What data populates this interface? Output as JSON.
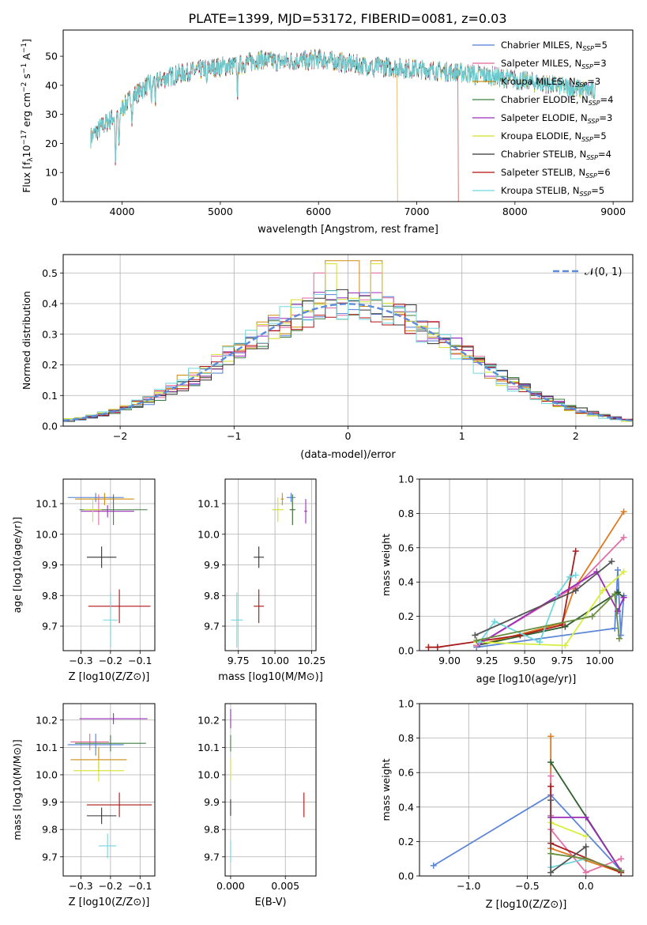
{
  "figure": {
    "suptitle": "PLATE=1399, MJD=53172, FIBERID=0081, z=0.03"
  },
  "colors": {
    "Chabrier MILES": "#4f7ed8",
    "Salpeter MILES": "#e3669b",
    "Kroupa MILES": "#d08b10",
    "Chabrier ELODIE": "#3f7f3f",
    "Salpeter ELODIE": "#9b2db8",
    "Kroupa ELODIE": "#d4e02a",
    "Chabrier STELIB": "#333333",
    "Salpeter STELIB": "#b01010",
    "Kroupa STELIB": "#6fd7dd",
    "mass_weight_palette": [
      "#5b86d6",
      "#e0781c",
      "#2f5f2f",
      "#e36fa8",
      "#a71d1d",
      "#9b2db8",
      "#d8ef3a",
      "#6fd7dd",
      "#555555",
      "#6a8f3f"
    ],
    "normal_curve": "#5b8bd9"
  },
  "chart_data": [
    {
      "type": "line",
      "id": "spectrum",
      "xlabel": "wavelength [Angstrom, rest frame]",
      "ylabel": "Flux [f_λ 10^-17 erg cm^-2 s^-1 A^-1]",
      "xlim": [
        3400,
        9200
      ],
      "ylim": [
        0,
        59
      ],
      "xticks": [
        4000,
        5000,
        6000,
        7000,
        8000,
        9000
      ],
      "yticks": [
        0,
        10,
        20,
        30,
        40,
        50
      ],
      "grid": false,
      "legend": "top-right",
      "continuum": {
        "x": [
          3680,
          3800,
          3950,
          4000,
          4100,
          4300,
          4600,
          4900,
          5200,
          5400,
          5600,
          6000,
          6400,
          6800,
          7200,
          7600,
          8000,
          8400,
          8800
        ],
        "y": [
          22,
          26,
          30,
          32,
          36,
          41,
          44,
          46,
          47,
          49,
          48,
          49,
          47,
          46,
          45,
          44,
          42,
          40,
          38
        ]
      },
      "series": [
        {
          "name": "Chabrier MILES, N_SSP=5",
          "label_main": "Chabrier MILES, N",
          "label_sub": "SSP",
          "label_tail": "=5"
        },
        {
          "name": "Salpeter MILES, N_SSP=3",
          "label_main": "Salpeter MILES, N",
          "label_sub": "SSP",
          "label_tail": "=3"
        },
        {
          "name": "Kroupa MILES, N_SSP=3",
          "label_main": "Kroupa MILES, N",
          "label_sub": "SSP",
          "label_tail": "=3",
          "cutoff_x": 6800
        },
        {
          "name": "Chabrier ELODIE, N_SSP=4",
          "label_main": "Chabrier ELODIE, N",
          "label_sub": "SSP",
          "label_tail": "=4"
        },
        {
          "name": "Salpeter ELODIE, N_SSP=3",
          "label_main": "Salpeter ELODIE, N",
          "label_sub": "SSP",
          "label_tail": "=3"
        },
        {
          "name": "Kroupa ELODIE, N_SSP=5",
          "label_main": "Kroupa ELODIE, N",
          "label_sub": "SSP",
          "label_tail": "=5"
        },
        {
          "name": "Chabrier STELIB, N_SSP=4",
          "label_main": "Chabrier STELIB, N",
          "label_sub": "SSP",
          "label_tail": "=4"
        },
        {
          "name": "Salpeter STELIB, N_SSP=6",
          "label_main": "Salpeter STELIB, N",
          "label_sub": "SSP",
          "label_tail": "=6",
          "cutoff_x": 7420
        },
        {
          "name": "Kroupa STELIB, N_SSP=5",
          "label_main": "Kroupa STELIB, N",
          "label_sub": "SSP",
          "label_tail": "=5"
        }
      ]
    },
    {
      "type": "line",
      "id": "residual-histogram",
      "xlabel": "(data-model)/error",
      "ylabel": "Normed distribution",
      "xlim": [
        -2.5,
        2.5
      ],
      "ylim": [
        0,
        0.56
      ],
      "xticks": [
        -2,
        -1,
        0,
        1,
        2
      ],
      "yticks": [
        0.0,
        0.1,
        0.2,
        0.3,
        0.4,
        0.5
      ],
      "grid": true,
      "legend": "top-right",
      "legend_label": "𝒩(0, 1)",
      "bin_width": 0.1,
      "peak_values": {
        "Kroupa MILES": 0.54,
        "Kroupa ELODIE": 0.53,
        "Salpeter MILES": 0.5
      }
    },
    {
      "type": "scatter",
      "id": "age-vs-Z",
      "xlabel": "Z [log10(Z/Z⊙)]",
      "ylabel": "age [log10(age/yr)]",
      "xlim": [
        -0.36,
        -0.05
      ],
      "ylim": [
        9.62,
        10.18
      ],
      "xticks": [
        -0.3,
        -0.2,
        -0.1
      ],
      "yticks": [
        9.7,
        9.8,
        9.9,
        10.0,
        10.1
      ],
      "grid": true,
      "points": [
        {
          "series": "Chabrier MILES",
          "x": -0.25,
          "y": 10.12,
          "xerr": 0.095,
          "yerr": 0.015
        },
        {
          "series": "Salpeter MILES",
          "x": -0.24,
          "y": 10.08,
          "xerr": 0.03,
          "yerr": 0.05
        },
        {
          "series": "Kroupa MILES",
          "x": -0.22,
          "y": 10.115,
          "xerr": 0.1,
          "yerr": 0.02
        },
        {
          "series": "Chabrier ELODIE",
          "x": -0.19,
          "y": 10.08,
          "xerr": 0.115,
          "yerr": 0.05
        },
        {
          "series": "Salpeter ELODIE",
          "x": -0.21,
          "y": 10.075,
          "xerr": 0.09,
          "yerr": 0.02
        },
        {
          "series": "Kroupa ELODIE",
          "x": -0.26,
          "y": 10.08,
          "xerr": 0.03,
          "yerr": 0.04
        },
        {
          "series": "Chabrier STELIB",
          "x": -0.23,
          "y": 9.925,
          "xerr": 0.05,
          "yerr": 0.035
        },
        {
          "series": "Salpeter STELIB",
          "x": -0.17,
          "y": 9.765,
          "xerr": 0.105,
          "yerr": 0.055
        },
        {
          "series": "Kroupa STELIB",
          "x": -0.2,
          "y": 9.72,
          "xerr": 0.025,
          "yerr": 0.09
        }
      ]
    },
    {
      "type": "scatter",
      "id": "age-vs-mass",
      "xlabel": "mass [log10(M/M⊙)]",
      "ylabel": "",
      "xlim": [
        9.66,
        10.28
      ],
      "ylim": [
        9.62,
        10.18
      ],
      "xticks": [
        9.75,
        10.0,
        10.25
      ],
      "yticks": [
        9.7,
        9.8,
        9.9,
        10.0,
        10.1
      ],
      "grid": true,
      "points": [
        {
          "series": "Chabrier MILES",
          "x": 10.11,
          "y": 10.12,
          "xerr": 0.03,
          "yerr": 0.015
        },
        {
          "series": "Salpeter MILES",
          "x": 10.12,
          "y": 10.08,
          "xerr": 0.01,
          "yerr": 0.05
        },
        {
          "series": "Kroupa MILES",
          "x": 10.05,
          "y": 10.115,
          "xerr": 0.01,
          "yerr": 0.02
        },
        {
          "series": "Chabrier ELODIE",
          "x": 10.12,
          "y": 10.08,
          "xerr": 0.02,
          "yerr": 0.05
        },
        {
          "series": "Salpeter ELODIE",
          "x": 10.21,
          "y": 10.075,
          "xerr": 0.01,
          "yerr": 0.04
        },
        {
          "series": "Kroupa ELODIE",
          "x": 10.02,
          "y": 10.08,
          "xerr": 0.04,
          "yerr": 0.04
        },
        {
          "series": "Chabrier STELIB",
          "x": 9.89,
          "y": 9.925,
          "xerr": 0.035,
          "yerr": 0.035
        },
        {
          "series": "Salpeter STELIB",
          "x": 9.89,
          "y": 9.765,
          "xerr": 0.035,
          "yerr": 0.055
        },
        {
          "series": "Kroupa STELIB",
          "x": 9.74,
          "y": 9.72,
          "xerr": 0.04,
          "yerr": 0.09
        }
      ]
    },
    {
      "type": "line",
      "id": "mass-weight-vs-age",
      "xlabel": "age [log10(age/yr)]",
      "ylabel": "mass weight",
      "xlim": [
        8.8,
        10.22
      ],
      "ylim": [
        0,
        1
      ],
      "xticks": [
        9.0,
        9.25,
        9.5,
        9.75,
        10.0
      ],
      "yticks": [
        0.0,
        0.2,
        0.4,
        0.6,
        0.8,
        1.0
      ],
      "grid": true,
      "series": [
        {
          "name": "Chabrier MILES",
          "x": [
            9.18,
            10.1,
            10.12,
            10.14,
            10.16
          ],
          "y": [
            0.02,
            0.13,
            0.47,
            0.09,
            0.32
          ]
        },
        {
          "name": "Kroupa MILES",
          "x": [
            9.18,
            9.75,
            9.83,
            10.16
          ],
          "y": [
            0.03,
            0.16,
            0.36,
            0.81
          ]
        },
        {
          "name": "Chabrier ELODIE",
          "x": [
            9.18,
            9.77,
            10.12,
            10.16
          ],
          "y": [
            0.03,
            0.14,
            0.34,
            0.31
          ]
        },
        {
          "name": "Salpeter MILES",
          "x": [
            9.18,
            9.85,
            10.16
          ],
          "y": [
            0.03,
            0.38,
            0.66
          ]
        },
        {
          "name": "Salpeter STELIB",
          "x": [
            8.86,
            8.92,
            9.47,
            9.75,
            9.84
          ],
          "y": [
            0.02,
            0.02,
            0.09,
            0.15,
            0.58
          ]
        },
        {
          "name": "Salpeter ELODIE",
          "x": [
            9.2,
            9.98,
            10.12,
            10.16
          ],
          "y": [
            0.04,
            0.46,
            0.23,
            0.31
          ]
        },
        {
          "name": "Kroupa ELODIE",
          "x": [
            9.18,
            9.77,
            10.02,
            10.16
          ],
          "y": [
            0.05,
            0.03,
            0.35,
            0.46
          ]
        },
        {
          "name": "Kroupa STELIB",
          "x": [
            9.2,
            9.3,
            9.6,
            9.72,
            9.8,
            9.84
          ],
          "y": [
            0.05,
            0.17,
            0.05,
            0.33,
            0.43,
            0.44
          ]
        },
        {
          "name": "Chabrier STELIB",
          "x": [
            9.17,
            9.84,
            10.08
          ],
          "y": [
            0.09,
            0.35,
            0.52
          ]
        },
        {
          "name": "Chabrier STELIB 2",
          "x": [
            9.18,
            9.95,
            10.1,
            10.13
          ],
          "y": [
            0.06,
            0.2,
            0.33,
            0.07
          ]
        }
      ]
    },
    {
      "type": "scatter",
      "id": "mass-vs-Z",
      "xlabel": "Z [log10(Z/Z⊙)]",
      "ylabel": "mass [log10(M/M⊙)]",
      "xlim": [
        -0.36,
        -0.05
      ],
      "ylim": [
        9.63,
        10.26
      ],
      "xticks": [
        -0.3,
        -0.2,
        -0.1
      ],
      "yticks": [
        9.7,
        9.8,
        9.9,
        10.0,
        10.1,
        10.2
      ],
      "grid": true,
      "points": [
        {
          "series": "Salpeter ELODIE",
          "x": -0.19,
          "y": 10.205,
          "xerr": 0.115,
          "yerr": 0.02
        },
        {
          "series": "Salpeter MILES",
          "x": -0.27,
          "y": 10.12,
          "xerr": 0.065,
          "yerr": 0.03
        },
        {
          "series": "Chabrier ELODIE",
          "x": -0.2,
          "y": 10.115,
          "xerr": 0.12,
          "yerr": 0.03
        },
        {
          "series": "Chabrier MILES",
          "x": -0.25,
          "y": 10.11,
          "xerr": 0.095,
          "yerr": 0.04
        },
        {
          "series": "Kroupa MILES",
          "x": -0.24,
          "y": 10.055,
          "xerr": 0.095,
          "yerr": 0.045
        },
        {
          "series": "Kroupa ELODIE",
          "x": -0.24,
          "y": 10.015,
          "xerr": 0.085,
          "yerr": 0.04
        },
        {
          "series": "Salpeter STELIB",
          "x": -0.17,
          "y": 9.89,
          "xerr": 0.11,
          "yerr": 0.045
        },
        {
          "series": "Chabrier STELIB",
          "x": -0.23,
          "y": 9.85,
          "xerr": 0.05,
          "yerr": 0.03
        },
        {
          "series": "Kroupa STELIB",
          "x": -0.21,
          "y": 9.74,
          "xerr": 0.03,
          "yerr": 0.045
        }
      ]
    },
    {
      "type": "scatter",
      "id": "mass-vs-ebv",
      "xlabel": "E(B-V)",
      "ylabel": "",
      "xlim": [
        -0.0005,
        0.0078
      ],
      "ylim": [
        9.63,
        10.26
      ],
      "xticks": [
        0.0,
        0.005
      ],
      "yticks": [
        9.7,
        9.8,
        9.9,
        10.0,
        10.1,
        10.2
      ],
      "grid": true,
      "points": [
        {
          "series": "Salpeter ELODIE",
          "x": 0.0,
          "y": 10.205,
          "yerr": 0.035
        },
        {
          "series": "Chabrier ELODIE",
          "x": 0.0,
          "y": 10.115,
          "yerr": 0.03
        },
        {
          "series": "Kroupa ELODIE",
          "x": 0.0,
          "y": 10.02,
          "yerr": 0.04
        },
        {
          "series": "Chabrier STELIB",
          "x": 0.0,
          "y": 9.88,
          "yerr": 0.03
        },
        {
          "series": "Kroupa STELIB",
          "x": 0.0,
          "y": 9.72,
          "yerr": 0.04
        },
        {
          "series": "Salpeter STELIB",
          "x": 0.0067,
          "y": 9.89,
          "yerr": 0.045
        }
      ]
    },
    {
      "type": "line",
      "id": "mass-weight-vs-Z",
      "xlabel": "Z [log10(Z/Z⊙)]",
      "ylabel": "mass weight",
      "xlim": [
        -1.42,
        0.4
      ],
      "ylim": [
        0,
        1
      ],
      "xticks": [
        -1.0,
        -0.5,
        0.0
      ],
      "yticks": [
        0.0,
        0.2,
        0.4,
        0.6,
        0.8,
        1.0
      ],
      "grid": true,
      "series": [
        {
          "name": "Chabrier MILES",
          "x": [
            -1.3,
            -0.3,
            0.3
          ],
          "y": [
            0.06,
            0.47,
            0.03
          ]
        },
        {
          "name": "Kroupa MILES",
          "x": [
            -0.3,
            -0.3,
            0.3
          ],
          "y": [
            0.81,
            0.16,
            0.02
          ]
        },
        {
          "name": "Salpeter MILES",
          "x": [
            -0.3,
            0.3
          ],
          "y": [
            0.66,
            0.03
          ]
        },
        {
          "name": "Salpeter STELIB",
          "x": [
            -0.3,
            -0.3,
            -0.3,
            0.0,
            0.3
          ],
          "y": [
            0.58,
            0.35,
            0.27,
            0.02,
            0.1
          ]
        },
        {
          "name": "Chabrier STELIB",
          "x": [
            -0.3,
            -0.3,
            0.3
          ],
          "y": [
            0.52,
            0.19,
            0.02
          ]
        },
        {
          "name": "Chabrier ELODIE",
          "x": [
            -0.3,
            0.0,
            0.3
          ],
          "y": [
            0.34,
            0.34,
            0.03
          ]
        },
        {
          "name": "Salpeter ELODIE",
          "x": [
            -0.3,
            0.0
          ],
          "y": [
            0.31,
            0.23
          ]
        },
        {
          "name": "Kroupa ELODIE",
          "x": [
            -0.3,
            0.0
          ],
          "y": [
            0.05,
            0.1
          ]
        },
        {
          "name": "Kroupa STELIB",
          "x": [
            -0.3,
            -0.3,
            0.0,
            0.0
          ],
          "y": [
            0.44,
            0.02,
            0.17,
            0.1
          ]
        },
        {
          "name": "Chabrier MILES 2",
          "x": [
            -0.3,
            0.0,
            0.3
          ],
          "y": [
            0.13,
            0.1,
            0.03
          ]
        }
      ]
    }
  ]
}
